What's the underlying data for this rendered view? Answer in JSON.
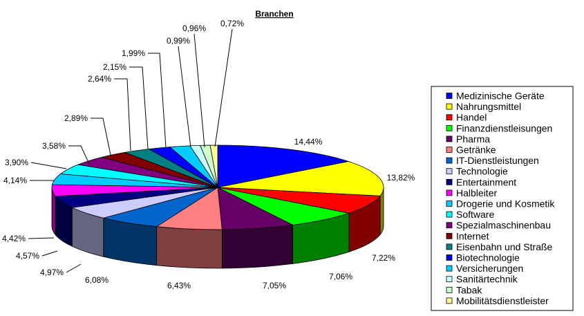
{
  "chart_data": {
    "type": "pie",
    "title": "Branchen",
    "legend_position": "right",
    "slices": [
      {
        "name": "Medizinische Geräte",
        "value": 14.44,
        "label": "14,44%",
        "color": "#0000FF"
      },
      {
        "name": "Nahrungsmittel",
        "value": 13.82,
        "label": "13,82%",
        "color": "#FFFF00"
      },
      {
        "name": "Handel",
        "value": 7.22,
        "label": "7,22%",
        "color": "#FF0000"
      },
      {
        "name": "Finanzdienstleisungen",
        "value": 7.06,
        "label": "7,06%",
        "color": "#00FF00"
      },
      {
        "name": "Pharma",
        "value": 7.05,
        "label": "7,05%",
        "color": "#660066"
      },
      {
        "name": "Getränke",
        "value": 6.43,
        "label": "6,43%",
        "color": "#FF8080"
      },
      {
        "name": "IT-Dienstleistungen",
        "value": 6.08,
        "label": "6,08%",
        "color": "#0066CC"
      },
      {
        "name": "Technologie",
        "value": 4.97,
        "label": "4,97%",
        "color": "#CCCCFF"
      },
      {
        "name": "Entertainment",
        "value": 4.57,
        "label": "4,57%",
        "color": "#000080"
      },
      {
        "name": "Halbleiter",
        "value": 4.42,
        "label": "4,42%",
        "color": "#FF00FF"
      },
      {
        "name": "Drogerie und Kosmetik",
        "value": 4.14,
        "label": "4,14%",
        "color": "#00CCFF"
      },
      {
        "name": "Software",
        "value": 3.9,
        "label": "3,90%",
        "color": "#00FFFF"
      },
      {
        "name": "Spezialmaschinenbau",
        "value": 3.58,
        "label": "3,58%",
        "color": "#800080"
      },
      {
        "name": "Internet",
        "value": 2.89,
        "label": "2,89%",
        "color": "#800000"
      },
      {
        "name": "Eisenbahn und Straße",
        "value": 2.64,
        "label": "2,64%",
        "color": "#008080"
      },
      {
        "name": "Biotechnologie",
        "value": 2.15,
        "label": "2,15%",
        "color": "#0000FF"
      },
      {
        "name": "Versicherungen",
        "value": 1.99,
        "label": "1,99%",
        "color": "#00CCFF"
      },
      {
        "name": "Sanitärtechnik",
        "value": 0.99,
        "label": "0,99%",
        "color": "#CCFFFF"
      },
      {
        "name": "Tabak",
        "value": 0.96,
        "label": "0,96%",
        "color": "#CCFFCC"
      },
      {
        "name": "Mobilitätsdienstleister",
        "value": 0.72,
        "label": "0,72%",
        "color": "#FFFF99"
      }
    ]
  }
}
